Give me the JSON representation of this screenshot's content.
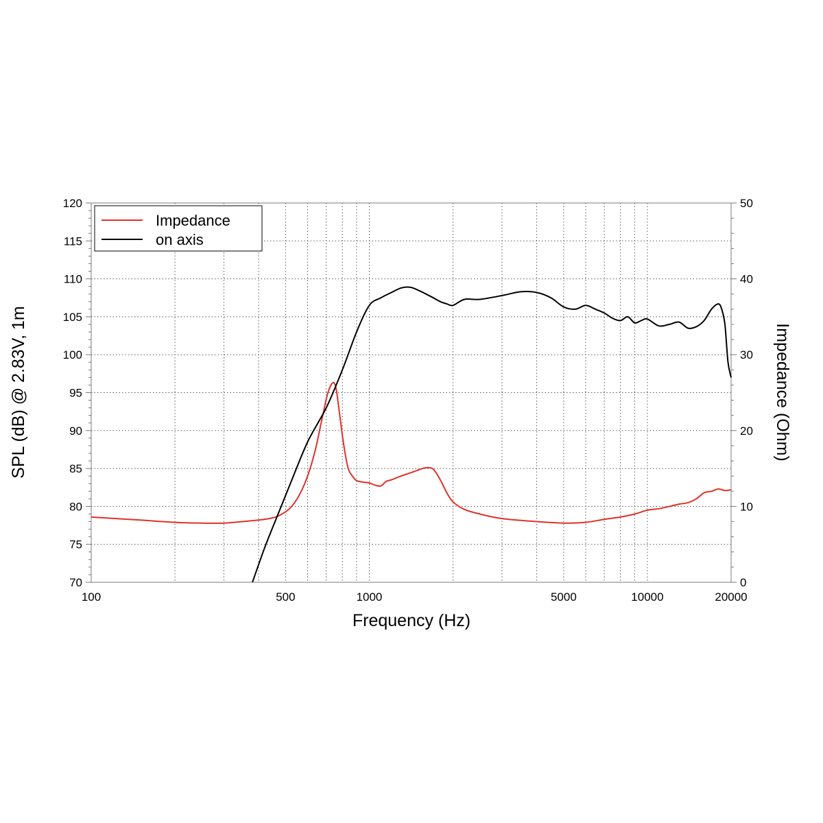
{
  "chart_data": {
    "type": "line",
    "x_scale": "log",
    "grid": "dotted, major and minor",
    "legend_position": "top-left",
    "xlabel": "Frequency (Hz)",
    "ylabel": "SPL (dB) @ 2.83V, 1m",
    "y2label": "Impedance (Ohm)",
    "xlim": [
      100,
      20000
    ],
    "ylim": [
      70,
      120
    ],
    "y2lim": [
      0,
      50
    ],
    "x_tick_labels": [
      "100",
      "500",
      "1000",
      "5000",
      "10000",
      "20000"
    ],
    "x_ticks": [
      100,
      500,
      1000,
      5000,
      10000,
      20000
    ],
    "x_grid": [
      200,
      300,
      400,
      500,
      600,
      700,
      800,
      900,
      1000,
      2000,
      3000,
      4000,
      5000,
      6000,
      7000,
      8000,
      9000,
      10000
    ],
    "y_ticks": [
      70,
      75,
      80,
      85,
      90,
      95,
      100,
      105,
      110,
      115,
      120
    ],
    "y_tick_labels": [
      "70",
      "75",
      "80",
      "85",
      "90",
      "95",
      "100",
      "105",
      "110",
      "115",
      "120"
    ],
    "y2_ticks": [
      0,
      10,
      20,
      30,
      40,
      50
    ],
    "y2_tick_labels": [
      "0",
      "10",
      "20",
      "30",
      "40",
      "50"
    ],
    "series": [
      {
        "name": "Impedance",
        "color": "#e0302a",
        "axis": "right",
        "x": [
          100,
          150,
          200,
          250,
          300,
          350,
          400,
          450,
          480,
          520,
          560,
          600,
          640,
          680,
          710,
          740,
          760,
          780,
          810,
          840,
          870,
          900,
          950,
          1000,
          1050,
          1100,
          1150,
          1200,
          1300,
          1400,
          1500,
          1600,
          1700,
          1800,
          1900,
          2000,
          2200,
          2500,
          3000,
          4000,
          5000,
          6000,
          7000,
          8000,
          9000,
          10000,
          11000,
          12000,
          13000,
          14000,
          15000,
          16000,
          17000,
          18000,
          19000,
          20000
        ],
        "y": [
          8.6,
          8.2,
          7.9,
          7.8,
          7.8,
          8.0,
          8.2,
          8.5,
          8.9,
          9.8,
          11.5,
          14.0,
          17.5,
          22.0,
          25.0,
          26.3,
          25.5,
          22.5,
          18.0,
          15.0,
          14.0,
          13.4,
          13.2,
          13.1,
          12.8,
          12.7,
          13.3,
          13.5,
          14.0,
          14.4,
          14.8,
          15.1,
          14.9,
          13.5,
          11.8,
          10.6,
          9.6,
          9.0,
          8.4,
          8.0,
          7.8,
          7.9,
          8.3,
          8.6,
          9.0,
          9.5,
          9.7,
          10.0,
          10.3,
          10.5,
          11.0,
          11.8,
          12.0,
          12.3,
          12.1,
          12.2
        ]
      },
      {
        "name": "on axis",
        "color": "#000000",
        "axis": "left",
        "x": [
          380,
          420,
          470,
          520,
          600,
          700,
          800,
          900,
          1000,
          1100,
          1200,
          1300,
          1400,
          1500,
          1600,
          1700,
          1800,
          1900,
          2000,
          2200,
          2500,
          3000,
          3500,
          4000,
          4500,
          5000,
          5500,
          6000,
          6500,
          7000,
          7500,
          8000,
          8500,
          9000,
          9500,
          10000,
          11000,
          12000,
          13000,
          14000,
          15000,
          16000,
          17000,
          18000,
          18500,
          19000,
          19500,
          20000
        ],
        "y": [
          70,
          74.5,
          79,
          83,
          88.5,
          93,
          98,
          103,
          106.5,
          107.5,
          108.2,
          108.8,
          108.9,
          108.5,
          108,
          107.5,
          107,
          106.7,
          106.5,
          107.3,
          107.3,
          107.8,
          108.3,
          108.2,
          107.5,
          106.3,
          106.0,
          106.5,
          106.0,
          105.5,
          104.8,
          104.5,
          105.0,
          104.2,
          104.5,
          104.7,
          103.8,
          104.0,
          104.3,
          103.5,
          103.7,
          104.5,
          106.0,
          106.7,
          106.0,
          104.0,
          99.0,
          97.0
        ]
      }
    ]
  }
}
